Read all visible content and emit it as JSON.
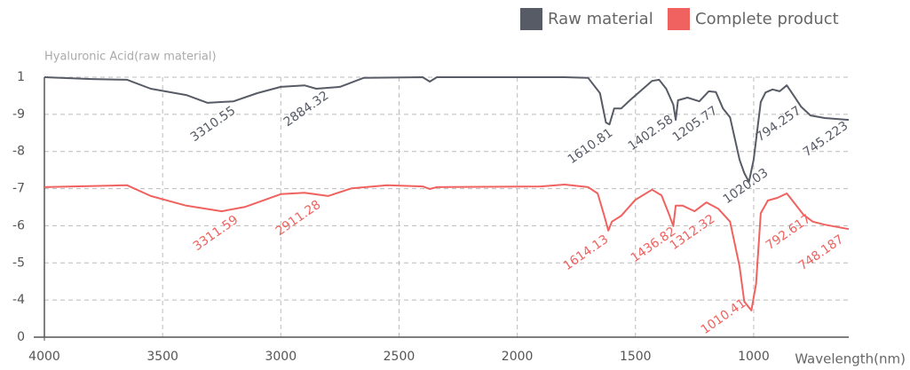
{
  "chart_data": {
    "type": "line",
    "y_axis_label": "Hyaluronic Acid(raw material)",
    "x_axis_label": "Wavelength(nm)",
    "xlim": [
      4000,
      598
    ],
    "xticks": [
      4000,
      3500,
      3000,
      2500,
      2000,
      1500,
      1000
    ],
    "ylim": [
      0,
      7
    ],
    "yticks": [
      {
        "value": 0,
        "label": "0"
      },
      {
        "value": 1,
        "label": "-4"
      },
      {
        "value": 2,
        "label": "-5"
      },
      {
        "value": 3,
        "label": "-6"
      },
      {
        "value": 4,
        "label": "-7"
      },
      {
        "value": 5,
        "label": "-8"
      },
      {
        "value": 6,
        "label": "-9"
      },
      {
        "value": 7,
        "label": "1"
      }
    ],
    "grid": true,
    "legend": "top-right",
    "series": [
      {
        "name": "Raw material",
        "color": "#575b66",
        "x": [
          4000,
          3800,
          3650,
          3550,
          3400,
          3310,
          3200,
          3100,
          3000,
          2900,
          2850,
          2750,
          2650,
          2400,
          2370,
          2340,
          1800,
          1700,
          1650,
          1625,
          1610,
          1590,
          1560,
          1520,
          1480,
          1430,
          1400,
          1370,
          1340,
          1330,
          1320,
          1280,
          1230,
          1190,
          1160,
          1130,
          1100,
          1060,
          1040,
          1020,
          1000,
          970,
          950,
          920,
          890,
          860,
          830,
          800,
          760,
          700,
          598
        ],
        "values": [
          7.0,
          6.95,
          6.93,
          6.69,
          6.52,
          6.31,
          6.35,
          6.57,
          6.74,
          6.78,
          6.69,
          6.74,
          6.98,
          7.0,
          6.88,
          7.0,
          7.0,
          6.98,
          6.57,
          5.78,
          5.73,
          6.16,
          6.16,
          6.4,
          6.62,
          6.9,
          6.93,
          6.69,
          6.26,
          5.85,
          6.38,
          6.45,
          6.35,
          6.62,
          6.6,
          6.16,
          5.92,
          4.78,
          4.42,
          4.18,
          4.78,
          6.33,
          6.59,
          6.67,
          6.62,
          6.78,
          6.5,
          6.21,
          5.97,
          5.9,
          5.85
        ],
        "peak_labels": [
          "3310.55",
          "2884.32",
          "1610.81",
          "1402.58",
          "1205.77",
          "1020.03",
          "794.257",
          "745.223"
        ]
      },
      {
        "name": "Complete product",
        "color": "#f0625f",
        "x": [
          4000,
          3650,
          3550,
          3400,
          3250,
          3150,
          3000,
          2900,
          2800,
          2700,
          2550,
          2400,
          2370,
          2340,
          1900,
          1800,
          1700,
          1660,
          1630,
          1615,
          1600,
          1560,
          1500,
          1430,
          1390,
          1360,
          1340,
          1330,
          1300,
          1250,
          1200,
          1150,
          1100,
          1060,
          1040,
          1010,
          990,
          970,
          940,
          900,
          860,
          830,
          790,
          750,
          700,
          598
        ],
        "values": [
          4.04,
          4.09,
          3.8,
          3.54,
          3.39,
          3.51,
          3.85,
          3.89,
          3.8,
          4.01,
          4.09,
          4.06,
          3.99,
          4.04,
          4.06,
          4.11,
          4.04,
          3.87,
          3.22,
          2.87,
          3.11,
          3.27,
          3.7,
          3.97,
          3.82,
          3.34,
          2.99,
          3.54,
          3.54,
          3.39,
          3.63,
          3.46,
          3.11,
          1.91,
          0.96,
          0.72,
          1.43,
          3.34,
          3.68,
          3.75,
          3.87,
          3.63,
          3.3,
          3.11,
          3.03,
          2.91
        ],
        "peak_labels": [
          "3311.59",
          "2911.28",
          "1614.13",
          "1436.82",
          "1312.32",
          "1010.41",
          "792.617",
          "748.187"
        ]
      }
    ]
  }
}
